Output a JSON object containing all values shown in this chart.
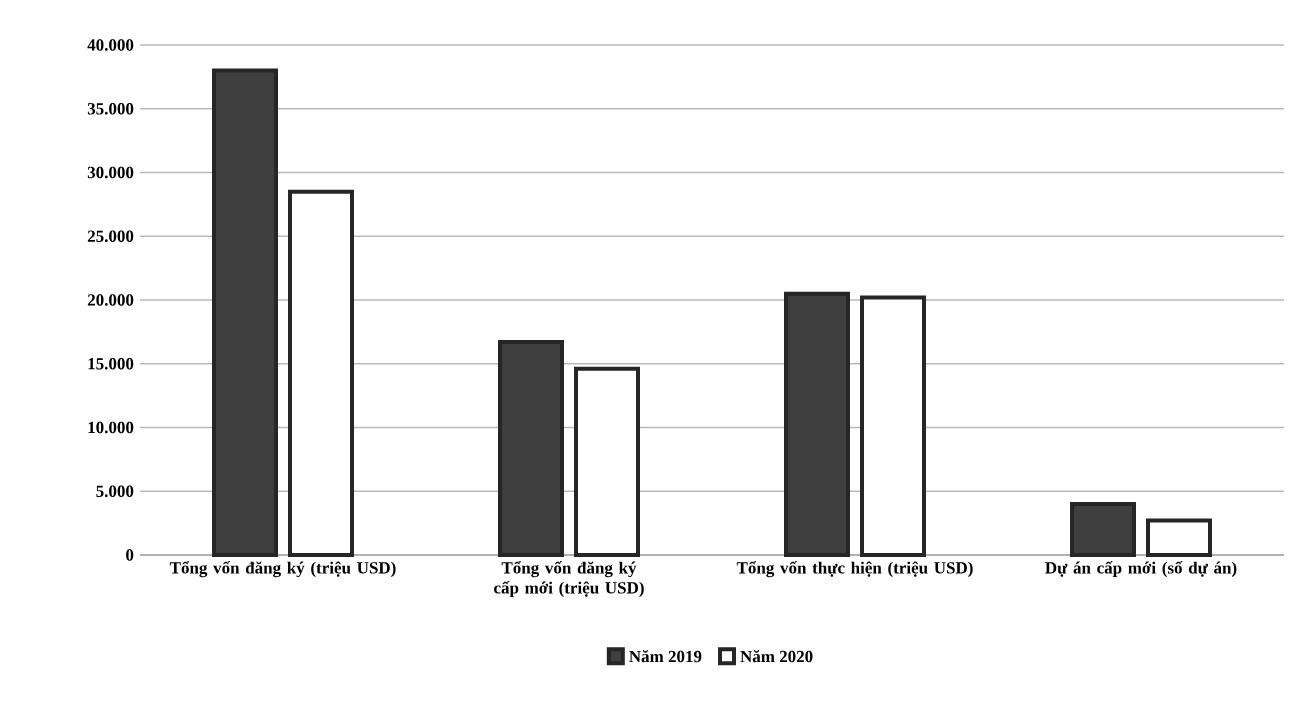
{
  "chart_data": {
    "type": "bar",
    "categories": [
      "Tổng vốn đăng ký (triệu USD)",
      "Tổng vốn đăng ký cấp mới (triệu USD)",
      "Tổng vốn thực hiện (triệu USD)",
      "Dự án cấp mới (số dự án)"
    ],
    "series": [
      {
        "name": "Năm 2019",
        "color": "#3f3f3f",
        "values": [
          38000,
          16700,
          20500,
          4000
        ]
      },
      {
        "name": "Năm 2020",
        "color": "#ffffff",
        "values": [
          28500,
          14600,
          20200,
          2700
        ]
      }
    ],
    "ylim": [
      0,
      40000
    ],
    "yticks": [
      {
        "value": 0,
        "label": "0"
      },
      {
        "value": 5000,
        "label": "5.000"
      },
      {
        "value": 10000,
        "label": "10.000"
      },
      {
        "value": 15000,
        "label": "15.000"
      },
      {
        "value": 20000,
        "label": "20.000"
      },
      {
        "value": 25000,
        "label": "25.000"
      },
      {
        "value": 30000,
        "label": "30.000"
      },
      {
        "value": 35000,
        "label": "35.000"
      },
      {
        "value": 40000,
        "label": "40.000"
      }
    ],
    "grid": "y",
    "legend": "bottom"
  }
}
